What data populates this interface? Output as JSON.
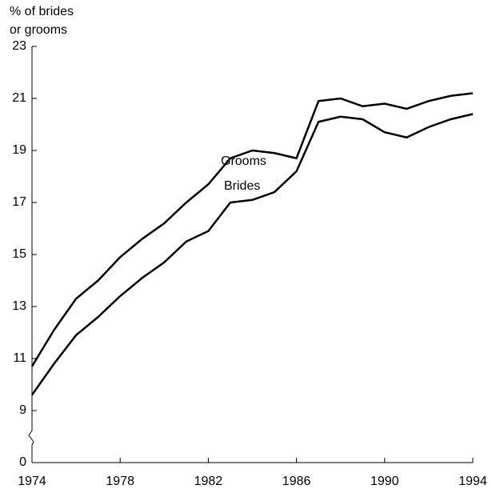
{
  "chart_data": {
    "type": "line",
    "ylabel": [
      "% of brides",
      "or grooms"
    ],
    "x": [
      1974,
      1975,
      1976,
      1977,
      1978,
      1979,
      1980,
      1981,
      1982,
      1983,
      1984,
      1985,
      1986,
      1987,
      1988,
      1989,
      1990,
      1991,
      1992,
      1993,
      1994
    ],
    "series": [
      {
        "name": "Grooms",
        "color": "#000000",
        "values": [
          10.7,
          12.1,
          13.3,
          14.0,
          14.9,
          15.6,
          16.2,
          17.0,
          17.7,
          18.7,
          19.0,
          18.9,
          18.7,
          20.9,
          21.0,
          20.7,
          20.8,
          20.6,
          20.9,
          21.1,
          21.2
        ]
      },
      {
        "name": "Brides",
        "color": "#000000",
        "values": [
          9.6,
          10.8,
          11.9,
          12.6,
          13.4,
          14.1,
          14.7,
          15.5,
          15.9,
          17.0,
          17.1,
          17.4,
          18.2,
          20.1,
          20.3,
          20.2,
          19.7,
          19.5,
          19.9,
          20.2,
          20.4
        ]
      }
    ],
    "xlim": [
      1974,
      1994
    ],
    "xticks": [
      1974,
      1978,
      1982,
      1986,
      1990,
      1994
    ],
    "ylim": [
      0,
      23
    ],
    "axis_break": [
      0,
      7
    ],
    "yticks": [
      0,
      9,
      11,
      13,
      15,
      17,
      19,
      21,
      23
    ],
    "grid": false
  }
}
